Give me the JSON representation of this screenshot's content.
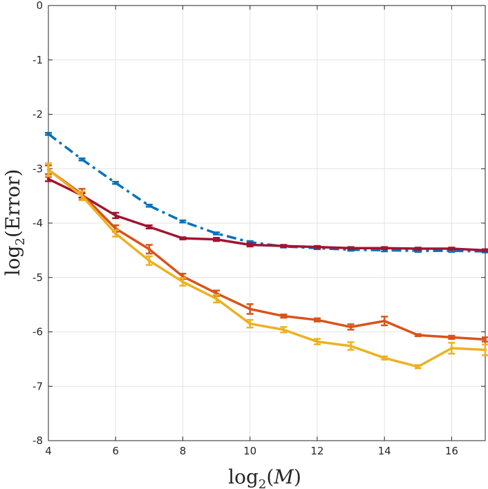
{
  "chart_data": {
    "type": "line",
    "title": "",
    "xlabel": {
      "prefix": "log",
      "subscript": "2",
      "open": "(",
      "var": "M",
      "close": ")"
    },
    "ylabel": {
      "prefix": "log",
      "subscript": "2",
      "open": "(",
      "var": "Error",
      "close": ")"
    },
    "xlim": [
      4,
      17
    ],
    "ylim": [
      -8,
      0
    ],
    "xticks": [
      4,
      6,
      8,
      10,
      12,
      14,
      16
    ],
    "yticks": [
      0,
      -1,
      -2,
      -3,
      -4,
      -5,
      -6,
      -7,
      -8
    ],
    "xtick_labels": [
      "4",
      "6",
      "8",
      "10",
      "12",
      "14",
      "16"
    ],
    "ytick_labels": [
      "0",
      "-1",
      "-2",
      "-3",
      "-4",
      "-5",
      "-6",
      "-7",
      "-8"
    ],
    "grid": true,
    "x": [
      4,
      5,
      6,
      7,
      8,
      9,
      10,
      11,
      12,
      13,
      14,
      15,
      16,
      17
    ],
    "series": [
      {
        "name": "blue-dashdot",
        "color": "#0072BD",
        "style": "dashdot",
        "values": [
          -2.36,
          -2.83,
          -3.26,
          -3.68,
          -3.97,
          -4.19,
          -4.35,
          -4.43,
          -4.46,
          -4.49,
          -4.5,
          -4.51,
          -4.51,
          -4.52
        ],
        "errors": [
          0.02,
          0.02,
          0.02,
          0.02,
          0.02,
          0.02,
          0.02,
          0.02,
          0.02,
          0.02,
          0.02,
          0.02,
          0.02,
          0.02
        ]
      },
      {
        "name": "crimson",
        "color": "#A2142F",
        "style": "solid",
        "values": [
          -3.19,
          -3.49,
          -3.86,
          -4.07,
          -4.28,
          -4.3,
          -4.4,
          -4.42,
          -4.44,
          -4.46,
          -4.46,
          -4.47,
          -4.47,
          -4.5
        ],
        "errors": [
          0.04,
          0.04,
          0.05,
          0.03,
          0.02,
          0.03,
          0.03,
          0.02,
          0.02,
          0.02,
          0.02,
          0.02,
          0.02,
          0.02
        ]
      },
      {
        "name": "orange",
        "color": "#D95319",
        "style": "solid",
        "values": [
          -3.02,
          -3.47,
          -4.1,
          -4.48,
          -4.98,
          -5.29,
          -5.58,
          -5.71,
          -5.78,
          -5.91,
          -5.8,
          -6.06,
          -6.1,
          -6.14
        ],
        "errors": [
          0.08,
          0.1,
          0.06,
          0.08,
          0.05,
          0.05,
          0.09,
          0.03,
          0.03,
          0.05,
          0.08,
          0.02,
          0.03,
          0.04
        ]
      },
      {
        "name": "yellow",
        "color": "#EDB120",
        "style": "solid",
        "values": [
          -3.02,
          -3.5,
          -4.19,
          -4.69,
          -5.08,
          -5.39,
          -5.85,
          -5.96,
          -6.18,
          -6.26,
          -6.48,
          -6.64,
          -6.3,
          -6.33
        ],
        "errors": [
          0.12,
          0.08,
          0.06,
          0.08,
          0.07,
          0.07,
          0.07,
          0.05,
          0.05,
          0.07,
          0.03,
          0.03,
          0.1,
          0.1
        ]
      }
    ]
  }
}
